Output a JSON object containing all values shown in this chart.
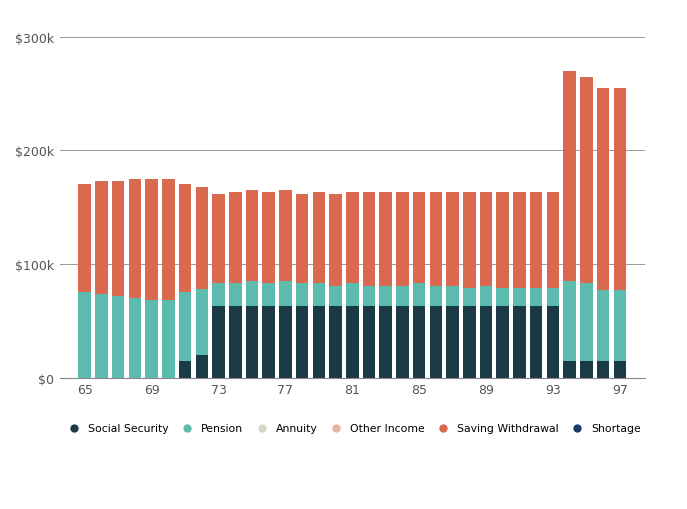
{
  "ages": [
    65,
    66,
    67,
    68,
    69,
    70,
    71,
    72,
    73,
    74,
    75,
    76,
    77,
    78,
    79,
    80,
    81,
    82,
    83,
    84,
    85,
    86,
    87,
    88,
    89,
    90,
    91,
    92,
    93,
    94,
    95,
    96,
    97
  ],
  "social_security": [
    0,
    0,
    0,
    0,
    0,
    0,
    15000,
    20000,
    63000,
    63000,
    63000,
    63000,
    63000,
    63000,
    63000,
    63000,
    63000,
    63000,
    63000,
    63000,
    63000,
    63000,
    63000,
    63000,
    63000,
    63000,
    63000,
    63000,
    63000,
    15000,
    15000,
    15000,
    15000
  ],
  "pension": [
    75000,
    74000,
    72000,
    70000,
    68000,
    68000,
    60000,
    58000,
    20000,
    20000,
    22000,
    20000,
    22000,
    20000,
    20000,
    18000,
    20000,
    18000,
    18000,
    18000,
    20000,
    18000,
    18000,
    16000,
    18000,
    16000,
    16000,
    16000,
    16000,
    70000,
    68000,
    62000,
    62000
  ],
  "annuity": [
    0,
    0,
    0,
    0,
    0,
    0,
    0,
    0,
    0,
    0,
    0,
    0,
    0,
    0,
    0,
    0,
    0,
    0,
    0,
    0,
    0,
    0,
    0,
    0,
    0,
    0,
    0,
    0,
    0,
    0,
    0,
    0,
    0
  ],
  "other_income": [
    0,
    0,
    0,
    0,
    0,
    0,
    0,
    0,
    0,
    0,
    0,
    0,
    0,
    0,
    0,
    0,
    0,
    0,
    0,
    0,
    0,
    0,
    0,
    0,
    0,
    0,
    0,
    0,
    0,
    0,
    0,
    0,
    0
  ],
  "saving_withdrawal": [
    95000,
    99000,
    101000,
    105000,
    107000,
    107000,
    95000,
    90000,
    79000,
    80000,
    80000,
    80000,
    80000,
    79000,
    80000,
    81000,
    80000,
    82000,
    82000,
    82000,
    80000,
    82000,
    82000,
    84000,
    82000,
    84000,
    84000,
    84000,
    84000,
    185000,
    182000,
    178000,
    178000
  ],
  "shortage": [
    0,
    0,
    0,
    0,
    0,
    0,
    0,
    0,
    0,
    0,
    0,
    0,
    0,
    0,
    0,
    0,
    0,
    0,
    0,
    0,
    0,
    0,
    0,
    0,
    0,
    0,
    0,
    0,
    0,
    0,
    0,
    0,
    0
  ],
  "colors": {
    "social_security": "#1b3a45",
    "pension": "#5bbcad",
    "annuity": "#d9d5c8",
    "other_income": "#e8b49a",
    "saving_withdrawal": "#d9694f",
    "shortage": "#1a3a6c"
  },
  "legend_labels": [
    "Social Security",
    "Pension",
    "Annuity",
    "Other Income",
    "Saving Withdrawal",
    "Shortage"
  ],
  "yticks": [
    0,
    100000,
    200000,
    300000
  ],
  "ytick_labels": [
    "$0",
    "$100k",
    "$200k",
    "$300k"
  ],
  "xtick_positions": [
    65,
    69,
    73,
    77,
    81,
    85,
    89,
    93,
    97
  ],
  "ylim": [
    0,
    320000
  ],
  "xlim": [
    63.5,
    98.5
  ],
  "background_color": "#ffffff",
  "grid_color": "#999999",
  "bar_width": 0.75
}
